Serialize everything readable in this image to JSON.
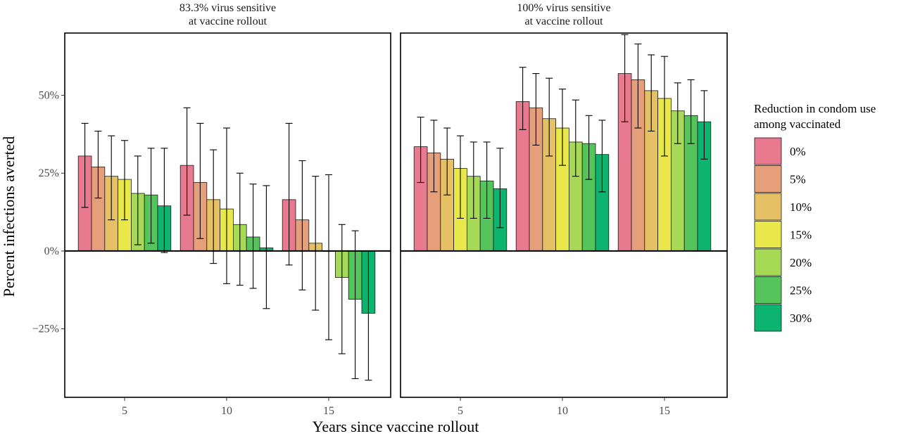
{
  "chart_data": {
    "type": "bar",
    "ylabel": "Percent infections averted",
    "xlabel": "Years since vaccine rollout",
    "ylim": [
      -47,
      70
    ],
    "yticks": [
      -25,
      0,
      25,
      50
    ],
    "ytick_labels": [
      "−25%",
      "0%",
      "25%",
      "50%"
    ],
    "categories": [
      "5",
      "10",
      "15"
    ],
    "legend": {
      "title_lines": [
        "Reduction in condom use",
        "among vaccinated"
      ],
      "position": "right"
    },
    "series": [
      {
        "name": "0%",
        "color": "#e8798f"
      },
      {
        "name": "5%",
        "color": "#e59f7a"
      },
      {
        "name": "10%",
        "color": "#e6c065"
      },
      {
        "name": "15%",
        "color": "#e9e84a"
      },
      {
        "name": "20%",
        "color": "#a6d956"
      },
      {
        "name": "25%",
        "color": "#55c45a"
      },
      {
        "name": "30%",
        "color": "#0db46f"
      }
    ],
    "panels": [
      {
        "title_lines": [
          "83.3% virus sensitive",
          "at vaccine rollout"
        ],
        "values": [
          [
            30.5,
            27.0,
            24.0,
            23.0,
            18.5,
            18.0,
            14.5
          ],
          [
            27.5,
            22.0,
            16.5,
            13.5,
            8.5,
            4.5,
            1.0
          ],
          [
            16.5,
            10.0,
            2.5,
            0,
            -8.5,
            -15.5,
            -20.0
          ]
        ],
        "lower": [
          [
            14.0,
            17.0,
            10.0,
            10.0,
            2.0,
            2.5,
            -0.5
          ],
          [
            11.5,
            4.0,
            -4.0,
            -10.5,
            -11.0,
            -12.0,
            -18.5
          ],
          [
            -4.5,
            -12.5,
            -19.0,
            -28.5,
            -33.0,
            -41.0,
            -41.5
          ]
        ],
        "upper": [
          [
            41.0,
            38.5,
            37.0,
            35.5,
            30.5,
            33.0,
            33.0
          ],
          [
            46.0,
            41.0,
            32.5,
            39.5,
            25.0,
            21.5,
            21.0
          ],
          [
            41.0,
            29.0,
            24.0,
            24.5,
            8.5,
            6.5,
            0
          ]
        ]
      },
      {
        "title_lines": [
          "100% virus sensitive",
          "at vaccine rollout"
        ],
        "values": [
          [
            33.5,
            31.5,
            29.5,
            26.5,
            24.0,
            22.5,
            20.0
          ],
          [
            48.0,
            46.0,
            42.5,
            39.5,
            35.0,
            34.5,
            31.0
          ],
          [
            57.0,
            55.0,
            51.5,
            49.0,
            45.0,
            43.5,
            41.5
          ]
        ],
        "lower": [
          [
            22.0,
            19.0,
            18.0,
            10.5,
            10.5,
            10.5,
            7.5
          ],
          [
            39.0,
            34.0,
            30.5,
            27.5,
            24.0,
            23.0,
            19.0
          ],
          [
            41.5,
            39.5,
            38.5,
            30.5,
            34.5,
            34.5,
            29.5
          ]
        ],
        "upper": [
          [
            43.0,
            42.0,
            39.5,
            37.0,
            35.0,
            35.0,
            33.0
          ],
          [
            59.0,
            57.0,
            55.5,
            52.0,
            48.5,
            43.5,
            42.0
          ],
          [
            69.5,
            66.5,
            63.0,
            62.5,
            54.0,
            55.0,
            51.5
          ]
        ]
      }
    ]
  }
}
